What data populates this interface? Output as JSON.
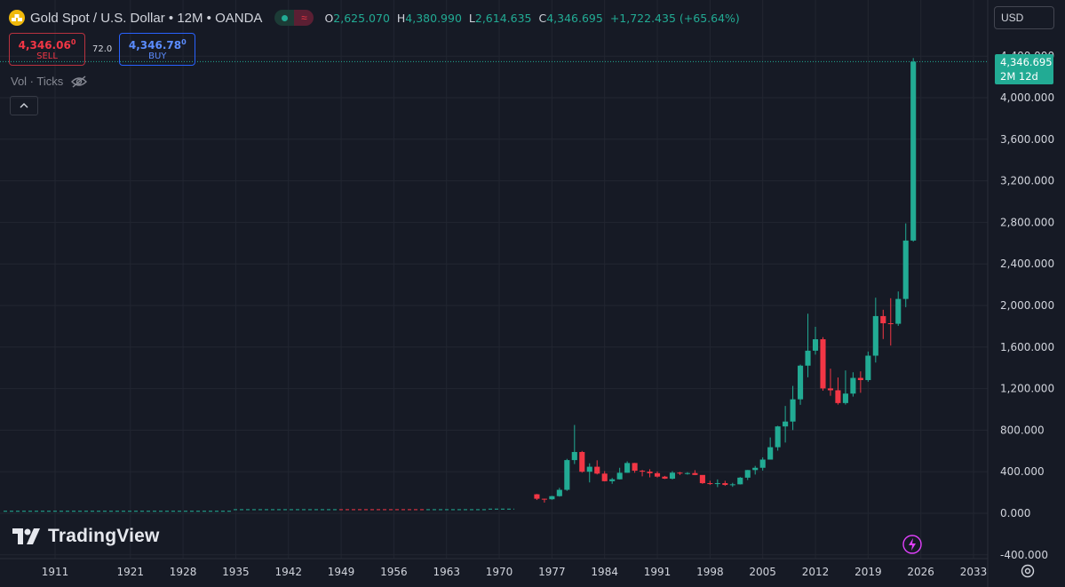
{
  "header": {
    "symbol_title": "Gold Spot / U.S. Dollar • 12M • OANDA",
    "status_icon": "market-open-dot-icon",
    "delay_icon": "approximate-wave-icon",
    "ohlc": {
      "o_label": "O",
      "o_value": "2,625.070",
      "h_label": "H",
      "h_value": "4,380.990",
      "l_label": "L",
      "l_value": "2,614.635",
      "c_label": "C",
      "c_value": "4,346.695",
      "change": "+1,722.435 (+65.64%)"
    }
  },
  "trade": {
    "sell_price": "4,346.06",
    "sell_price_sup": "0",
    "sell_label": "SELL",
    "spread": "72.0",
    "buy_price": "4,346.78",
    "buy_price_sup": "0",
    "buy_label": "BUY"
  },
  "indicator": {
    "label": "Vol · Ticks",
    "visibility_icon": "eye-hidden-icon"
  },
  "currency": "USD",
  "last_price": {
    "price": "4,346.695",
    "countdown": "2M 12d"
  },
  "watermark": "TradingView",
  "colors": {
    "up": "#22ab94",
    "down": "#f23645",
    "background": "#161a25",
    "grid": "#222631",
    "text": "#d1d4dc"
  },
  "chart_data": {
    "type": "candlestick",
    "title": "Gold Spot / U.S. Dollar",
    "interval": "12M",
    "x_ticks": [
      "1911",
      "1921",
      "1928",
      "1935",
      "1942",
      "1949",
      "1956",
      "1963",
      "1970",
      "1977",
      "1984",
      "1991",
      "1998",
      "2005",
      "2012",
      "2019",
      "2026",
      "2033"
    ],
    "y_ticks": [
      "4,400.000",
      "4,000.000",
      "3,600.000",
      "3,200.000",
      "2,800.000",
      "2,400.000",
      "2,000.000",
      "1,600.000",
      "1,200.000",
      "800.000",
      "400.000",
      "0.000",
      "-400.000"
    ],
    "ylim": [
      -400,
      4400
    ],
    "xlim": [
      1904,
      2036
    ],
    "last_price": 4346.695,
    "candles": [
      {
        "year": 1975,
        "o": 183,
        "h": 186,
        "l": 128,
        "c": 140
      },
      {
        "year": 1976,
        "o": 140,
        "h": 141,
        "l": 103,
        "c": 135
      },
      {
        "year": 1977,
        "o": 135,
        "h": 168,
        "l": 130,
        "c": 165
      },
      {
        "year": 1978,
        "o": 165,
        "h": 245,
        "l": 160,
        "c": 226
      },
      {
        "year": 1979,
        "o": 226,
        "h": 524,
        "l": 216,
        "c": 512
      },
      {
        "year": 1980,
        "o": 512,
        "h": 850,
        "l": 474,
        "c": 590
      },
      {
        "year": 1981,
        "o": 590,
        "h": 600,
        "l": 391,
        "c": 400
      },
      {
        "year": 1982,
        "o": 400,
        "h": 481,
        "l": 297,
        "c": 448
      },
      {
        "year": 1983,
        "o": 448,
        "h": 510,
        "l": 374,
        "c": 382
      },
      {
        "year": 1984,
        "o": 382,
        "h": 406,
        "l": 307,
        "c": 309
      },
      {
        "year": 1985,
        "o": 309,
        "h": 340,
        "l": 284,
        "c": 327
      },
      {
        "year": 1986,
        "o": 327,
        "h": 438,
        "l": 326,
        "c": 390
      },
      {
        "year": 1987,
        "o": 390,
        "h": 500,
        "l": 390,
        "c": 484
      },
      {
        "year": 1988,
        "o": 484,
        "h": 485,
        "l": 390,
        "c": 410
      },
      {
        "year": 1989,
        "o": 410,
        "h": 418,
        "l": 356,
        "c": 401
      },
      {
        "year": 1990,
        "o": 401,
        "h": 424,
        "l": 346,
        "c": 386
      },
      {
        "year": 1991,
        "o": 386,
        "h": 403,
        "l": 344,
        "c": 353
      },
      {
        "year": 1992,
        "o": 353,
        "h": 360,
        "l": 330,
        "c": 333
      },
      {
        "year": 1993,
        "o": 333,
        "h": 406,
        "l": 326,
        "c": 391
      },
      {
        "year": 1994,
        "o": 391,
        "h": 398,
        "l": 369,
        "c": 383
      },
      {
        "year": 1995,
        "o": 383,
        "h": 396,
        "l": 372,
        "c": 387
      },
      {
        "year": 1996,
        "o": 387,
        "h": 415,
        "l": 367,
        "c": 369
      },
      {
        "year": 1997,
        "o": 369,
        "h": 367,
        "l": 283,
        "c": 290
      },
      {
        "year": 1998,
        "o": 290,
        "h": 313,
        "l": 273,
        "c": 288
      },
      {
        "year": 1999,
        "o": 288,
        "h": 326,
        "l": 252,
        "c": 290
      },
      {
        "year": 2000,
        "o": 290,
        "h": 313,
        "l": 264,
        "c": 273
      },
      {
        "year": 2001,
        "o": 273,
        "h": 293,
        "l": 255,
        "c": 279
      },
      {
        "year": 2002,
        "o": 279,
        "h": 349,
        "l": 277,
        "c": 343
      },
      {
        "year": 2003,
        "o": 343,
        "h": 417,
        "l": 320,
        "c": 416
      },
      {
        "year": 2004,
        "o": 416,
        "h": 456,
        "l": 373,
        "c": 438
      },
      {
        "year": 2005,
        "o": 438,
        "h": 538,
        "l": 411,
        "c": 517
      },
      {
        "year": 2006,
        "o": 517,
        "h": 730,
        "l": 518,
        "c": 636
      },
      {
        "year": 2007,
        "o": 636,
        "h": 842,
        "l": 603,
        "c": 836
      },
      {
        "year": 2008,
        "o": 836,
        "h": 1033,
        "l": 681,
        "c": 883
      },
      {
        "year": 2009,
        "o": 883,
        "h": 1226,
        "l": 801,
        "c": 1097
      },
      {
        "year": 2010,
        "o": 1097,
        "h": 1431,
        "l": 1044,
        "c": 1421
      },
      {
        "year": 2011,
        "o": 1421,
        "h": 1921,
        "l": 1309,
        "c": 1565
      },
      {
        "year": 2012,
        "o": 1565,
        "h": 1795,
        "l": 1527,
        "c": 1675
      },
      {
        "year": 2013,
        "o": 1675,
        "h": 1695,
        "l": 1180,
        "c": 1202
      },
      {
        "year": 2014,
        "o": 1202,
        "h": 1392,
        "l": 1131,
        "c": 1184
      },
      {
        "year": 2015,
        "o": 1184,
        "h": 1307,
        "l": 1046,
        "c": 1061
      },
      {
        "year": 2016,
        "o": 1061,
        "h": 1375,
        "l": 1046,
        "c": 1152
      },
      {
        "year": 2017,
        "o": 1152,
        "h": 1357,
        "l": 1123,
        "c": 1303
      },
      {
        "year": 2018,
        "o": 1303,
        "h": 1366,
        "l": 1160,
        "c": 1282
      },
      {
        "year": 2019,
        "o": 1282,
        "h": 1557,
        "l": 1266,
        "c": 1517
      },
      {
        "year": 2020,
        "o": 1517,
        "h": 2075,
        "l": 1451,
        "c": 1898
      },
      {
        "year": 2021,
        "o": 1898,
        "h": 1959,
        "l": 1677,
        "c": 1829
      },
      {
        "year": 2022,
        "o": 1829,
        "h": 2070,
        "l": 1614,
        "c": 1824
      },
      {
        "year": 2023,
        "o": 1824,
        "h": 2135,
        "l": 1804,
        "c": 2063
      },
      {
        "year": 2024,
        "o": 2063,
        "h": 2790,
        "l": 1984,
        "c": 2625
      },
      {
        "year": 2025,
        "o": 2625.07,
        "h": 4380.99,
        "l": 2614.635,
        "c": 4346.695
      }
    ]
  }
}
